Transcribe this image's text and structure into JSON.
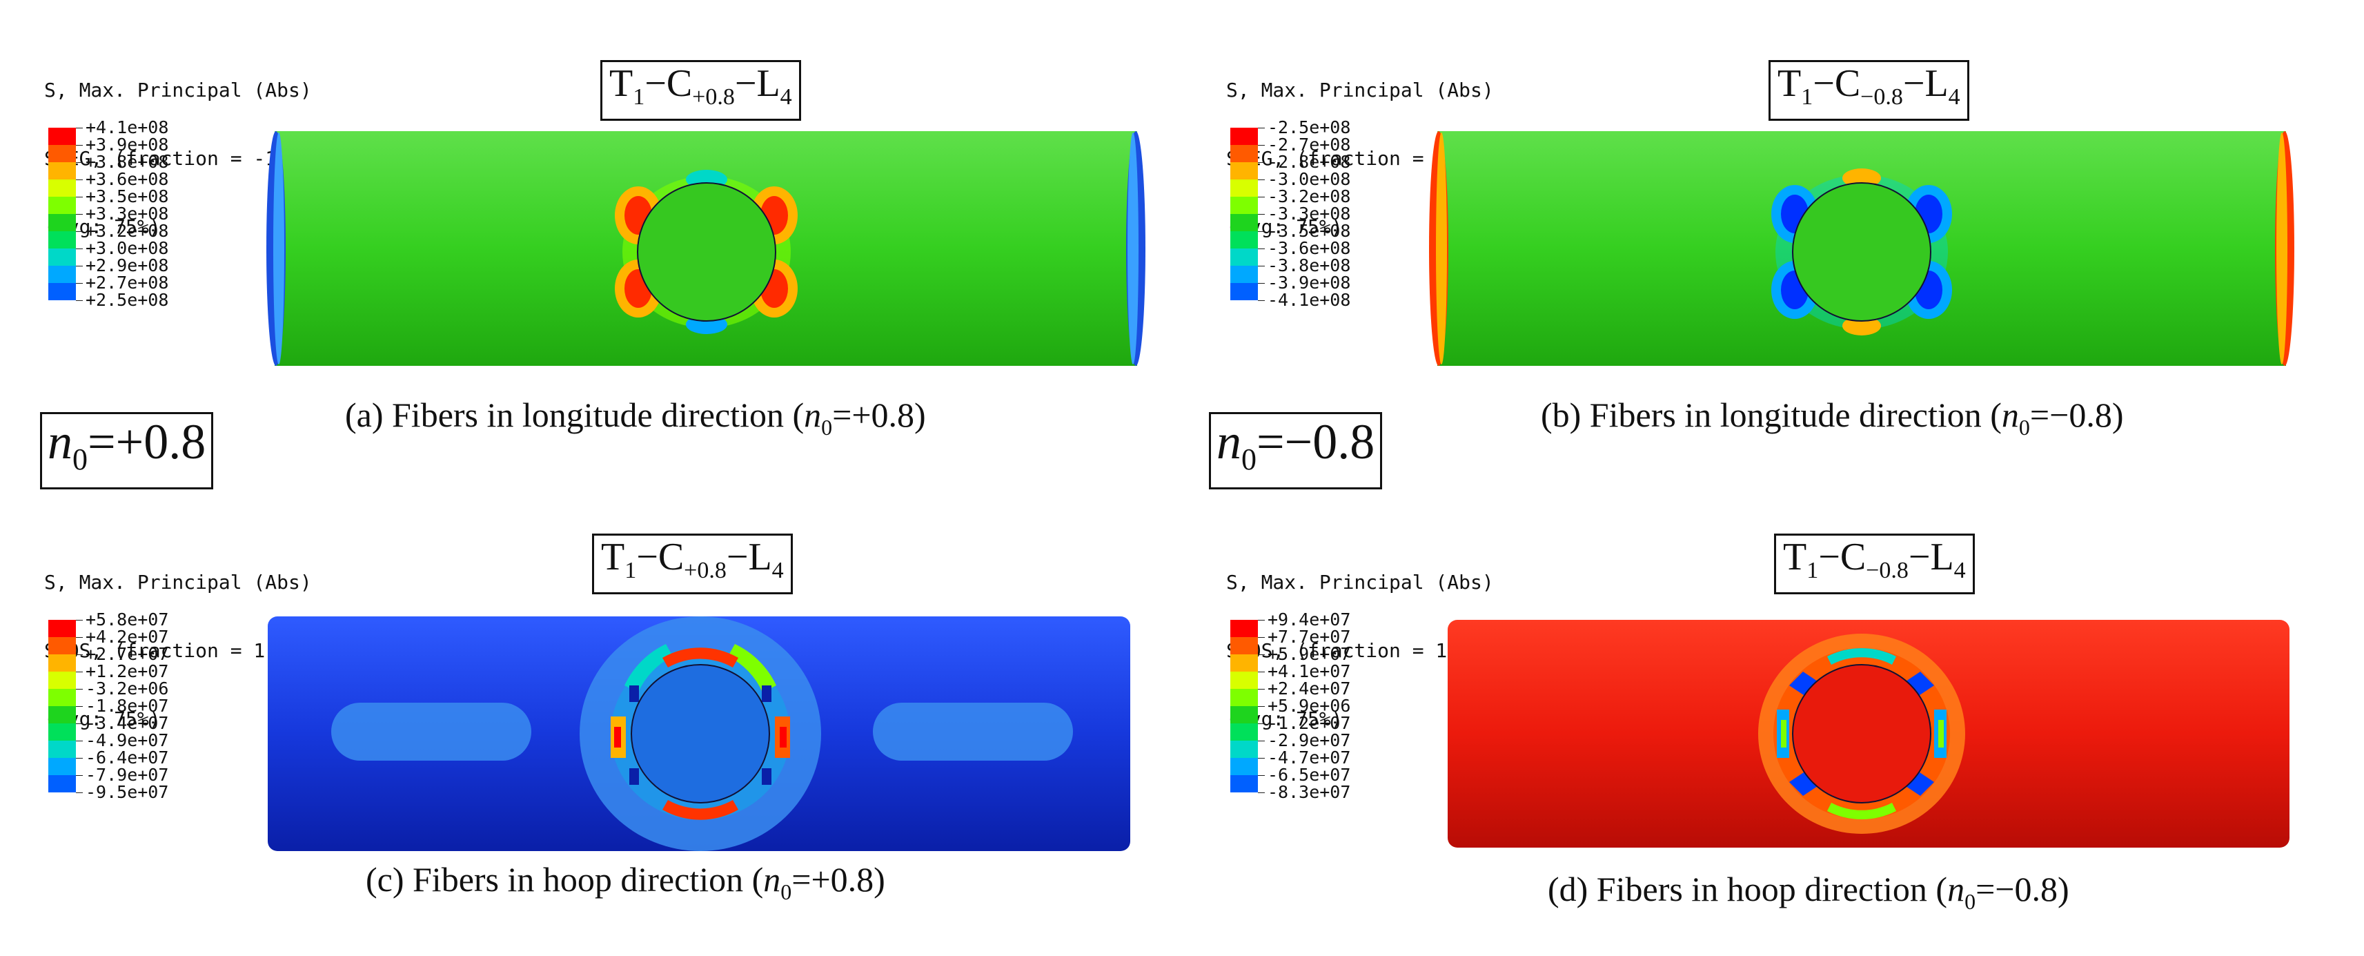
{
  "panels": {
    "a": {
      "header": [
        "S, Max. Principal (Abs)",
        "SNEG, (fraction = -1.0), Layer = 1",
        "(Avg: 75%)"
      ],
      "legend": [
        "+4.1e+08",
        "+3.9e+08",
        "+3.8e+08",
        "+3.6e+08",
        "+3.5e+08",
        "+3.3e+08",
        "+3.2e+08",
        "+3.0e+08",
        "+2.9e+08",
        "+2.7e+08",
        "+2.5e+08"
      ],
      "tag": {
        "t": "T",
        "t_sub": "1",
        "c": "C",
        "c_sub": "+0.8",
        "l": "L",
        "l_sub": "4",
        "dash": "−"
      },
      "caption": {
        "pre": "(a) Fibers in longitude direction (",
        "n": "n",
        "n_sub": "0",
        "post": "=+0.8)"
      }
    },
    "b": {
      "header": [
        "S, Max. Principal (Abs)",
        "SNEG, (fraction = -1.0), Layer = 1",
        "(Avg: 75%)"
      ],
      "legend": [
        "-2.5e+08",
        "-2.7e+08",
        "-2.8e+08",
        "-3.0e+08",
        "-3.2e+08",
        "-3.3e+08",
        "-3.5e+08",
        "-3.6e+08",
        "-3.8e+08",
        "-3.9e+08",
        "-4.1e+08"
      ],
      "tag": {
        "t": "T",
        "t_sub": "1",
        "c": "C",
        "c_sub": "−0.8",
        "l": "L",
        "l_sub": "4",
        "dash": "−"
      },
      "caption": {
        "pre": "(b) Fibers in longitude direction (",
        "n": "n",
        "n_sub": "0",
        "post": "=−0.8)"
      }
    },
    "c": {
      "header": [
        "S, Max. Principal (Abs)",
        "SPOS, (fraction = 1.0), Layer = 4",
        "(Avg: 75%)"
      ],
      "legend": [
        "+5.8e+07",
        "+4.2e+07",
        "+2.7e+07",
        "+1.2e+07",
        "-3.2e+06",
        "-1.8e+07",
        "-3.4e+07",
        "-4.9e+07",
        "-6.4e+07",
        "-7.9e+07",
        "-9.5e+07"
      ],
      "tag": {
        "t": "T",
        "t_sub": "1",
        "c": "C",
        "c_sub": "+0.8",
        "l": "L",
        "l_sub": "4",
        "dash": "−"
      },
      "caption": {
        "pre": "(c) Fibers in hoop direction (",
        "n": "n",
        "n_sub": "0",
        "post": "=+0.8)"
      }
    },
    "d": {
      "header": [
        "S, Max. Principal (Abs)",
        "SPOS, (fraction = 1.0), Layer = 4",
        "(Avg: 75%)"
      ],
      "legend": [
        "+9.4e+07",
        "+7.7e+07",
        "+5.9e+07",
        "+4.1e+07",
        "+2.4e+07",
        "+5.9e+06",
        "-1.2e+07",
        "-2.9e+07",
        "-4.7e+07",
        "-6.5e+07",
        "-8.3e+07"
      ],
      "tag": {
        "t": "T",
        "t_sub": "1",
        "c": "C",
        "c_sub": "−0.8",
        "l": "L",
        "l_sub": "4",
        "dash": "−"
      },
      "caption": {
        "pre": "(d) Fibers in hoop direction (",
        "n": "n",
        "n_sub": "0",
        "post": "=−0.8)"
      }
    }
  },
  "n0_labels": {
    "left": {
      "n": "n",
      "sub": "0",
      "val": "=+0.8"
    },
    "right": {
      "n": "n",
      "sub": "0",
      "val": "=−0.8"
    }
  },
  "colormap": [
    "#ff0000",
    "#ff5a00",
    "#ffb400",
    "#d8ff00",
    "#7eff00",
    "#1ed41e",
    "#00e05a",
    "#00d8c8",
    "#00a8ff",
    "#0060ff",
    "#0000ff"
  ],
  "colors": {
    "cyl_green": "#33c81e",
    "cyl_blue": "#1b3de0",
    "cyl_red": "#ef1f10"
  }
}
